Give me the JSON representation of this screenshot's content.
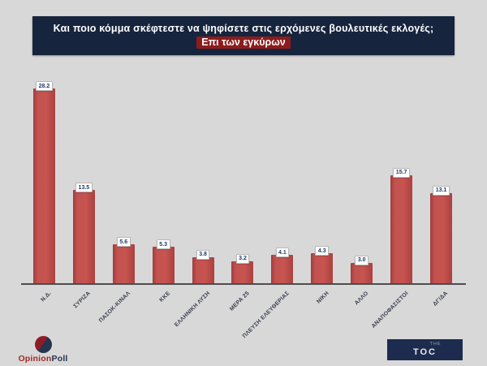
{
  "header": {
    "title": "Και ποιο κόμμα σκέφτεστε να ψηφίσετε  στις ερχόμενες βουλευτικές εκλογές;",
    "subtitle": "Επι των εγκύρων"
  },
  "chart_data": {
    "type": "bar",
    "title": "Και ποιο κόμμα σκέφτεστε να ψηφίσετε στις ερχόμενες βουλευτικές εκλογές; Επι των εγκύρων",
    "categories": [
      "Ν.Δ.",
      "ΣΥΡΙΖΑ",
      "ΠΑΣΟΚ-ΚΙΝΑΛ",
      "ΚΚΕ",
      "ΕΛΛΗΝΙΚΗ ΛΥΣΗ",
      "ΜΕΡΑ 25",
      "ΠΛΕΥΣΗ ΕΛΕΥΘΕΡΙΑΣ",
      "ΝΙΚΗ",
      "ΑΛΛΟ",
      "ΑΝΑΠΟΦΑΣΙΣΤΟΙ",
      "ΔΓ/ΔΑ"
    ],
    "values": [
      28.2,
      13.5,
      5.6,
      5.3,
      3.8,
      3.2,
      4.1,
      4.3,
      3.0,
      15.7,
      13.1
    ],
    "xlabel": "",
    "ylabel": "",
    "ylim": [
      0,
      30
    ],
    "grid": false,
    "legend": false,
    "data_labels": true,
    "bar_color": "#c0504d"
  },
  "footer": {
    "opinion_poll_logo": {
      "text_primary": "Opinion",
      "text_secondary": "Poll"
    },
    "toc_logo": {
      "line1": "THE",
      "line2": "TOC"
    }
  },
  "colors": {
    "background": "#d8d8d8",
    "title_box": "#17243e",
    "subtitle_highlight": "#8e1b1b",
    "bar": "#c0504d",
    "value_label_text": "#1f3864",
    "axis_line": "#4d4d4d"
  }
}
